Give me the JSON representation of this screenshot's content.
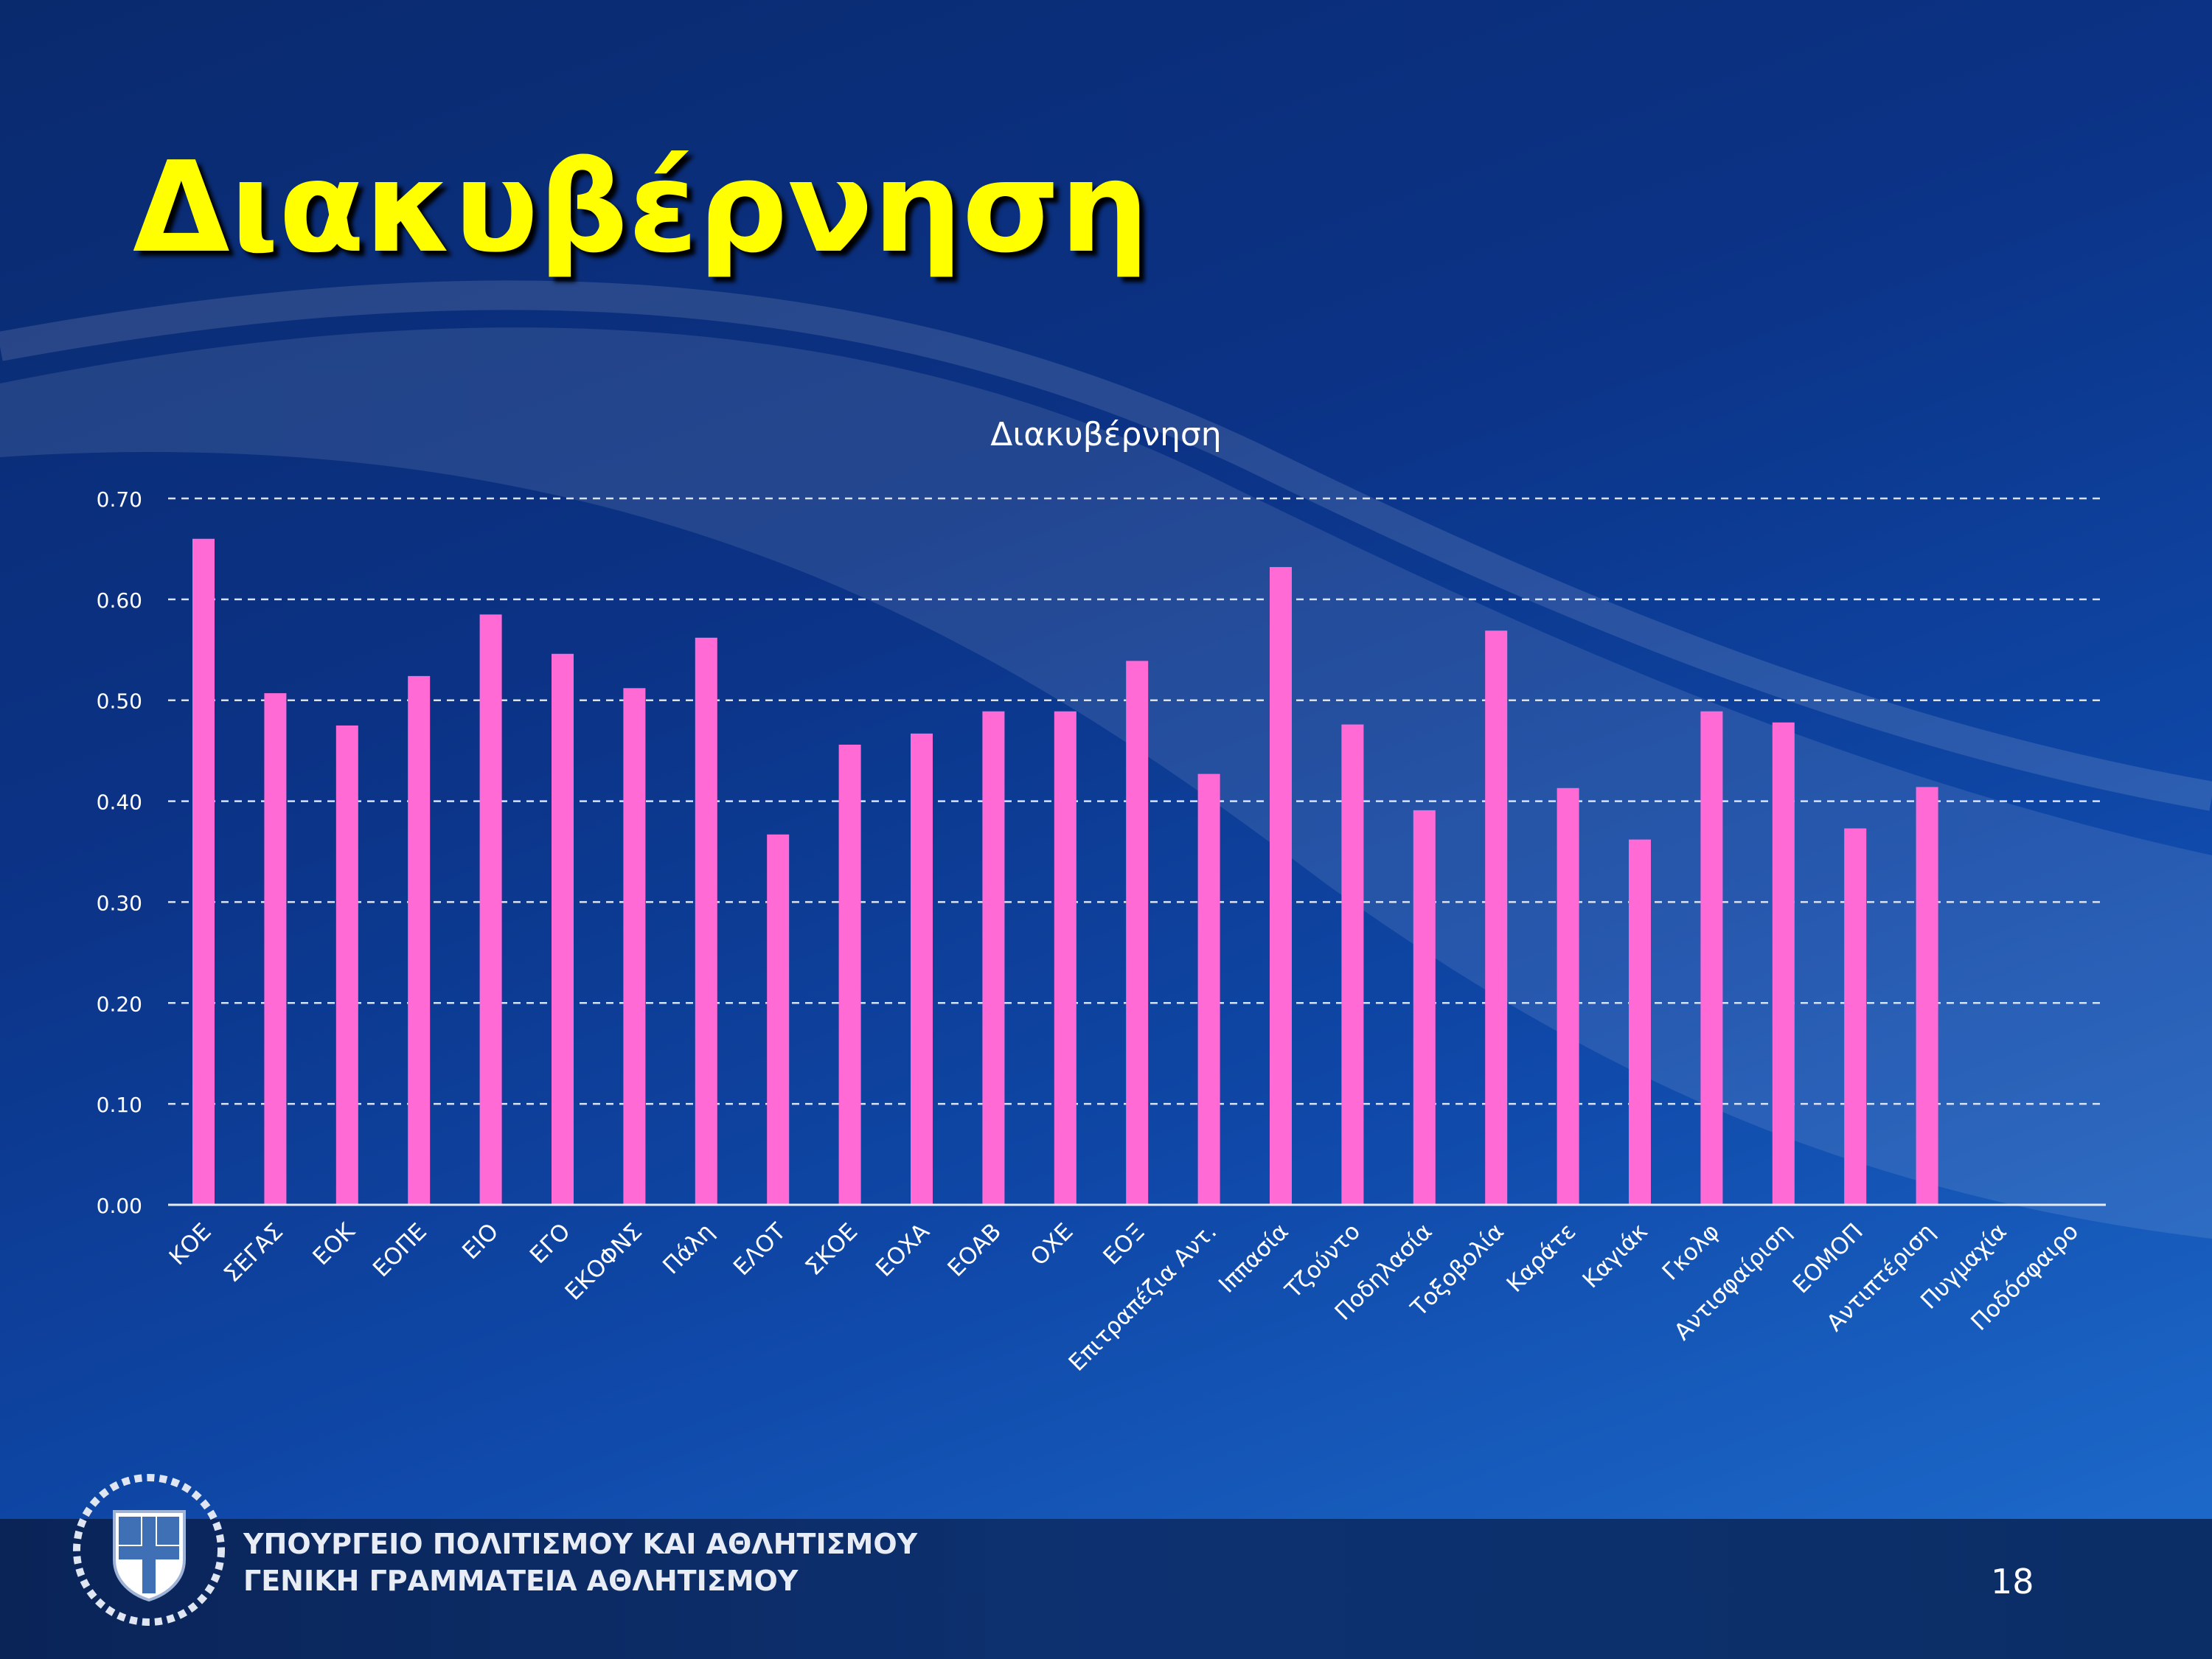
{
  "slide": {
    "title": "Διακυβέρνηση",
    "page_number": "18",
    "ministry_line1": "ΥΠΟΥΡΓΕΙΟ ΠΟΛΙΤΙΣΜΟΥ ΚΑΙ ΑΘΛΗΤΙΣΜΟΥ",
    "ministry_line2": "ΓΕΝΙΚΗ ΓΡΑΜΜΑΤΕΙΑ ΑΘΛΗΤΙΣΜΟΥ",
    "emblem_icon": "greek-coat-of-arms-icon"
  },
  "colors": {
    "title": "#ffff00",
    "bar": "#ff6ad5",
    "gridline": "#d9e2f2",
    "text": "#ffffff"
  },
  "chart_data": {
    "type": "bar",
    "title": "Διακυβέρνηση",
    "xlabel": "",
    "ylabel": "",
    "ylim": [
      0,
      0.7
    ],
    "yticks": [
      "0.00",
      "0.10",
      "0.20",
      "0.30",
      "0.40",
      "0.50",
      "0.60",
      "0.70"
    ],
    "grid": true,
    "categories": [
      "ΚΟΕ",
      "ΣΕΓΑΣ",
      "ΕΟΚ",
      "ΕΟΠΕ",
      "ΕΙΟ",
      "ΕΓΟ",
      "ΕΚΟΦΝΣ",
      "Πάλη",
      "ΕΛΟΤ",
      "ΣΚΟΕ",
      "ΕΟΧΑ",
      "ΕΟΑΒ",
      "ΟΧΕ",
      "ΕΟΞ",
      "Επιτραπέζια Αντ.",
      "Ιππασία",
      "Τζούντο",
      "Ποδηλασία",
      "Τοξοβολία",
      "Καράτε",
      "Καγιάκ",
      "Γκολφ",
      "Αντισφαίριση",
      "ΕΟΜΟΠ",
      "Αντιπτέριση",
      "Πυγμαχία",
      "Ποδόσφαιρο"
    ],
    "values": [
      0.66,
      0.507,
      0.475,
      0.524,
      0.585,
      0.546,
      0.512,
      0.562,
      0.367,
      0.456,
      0.467,
      0.489,
      0.489,
      0.539,
      0.427,
      0.632,
      0.476,
      0.391,
      0.569,
      0.413,
      0.362,
      0.489,
      0.478,
      0.373,
      0.414,
      0,
      0
    ]
  }
}
